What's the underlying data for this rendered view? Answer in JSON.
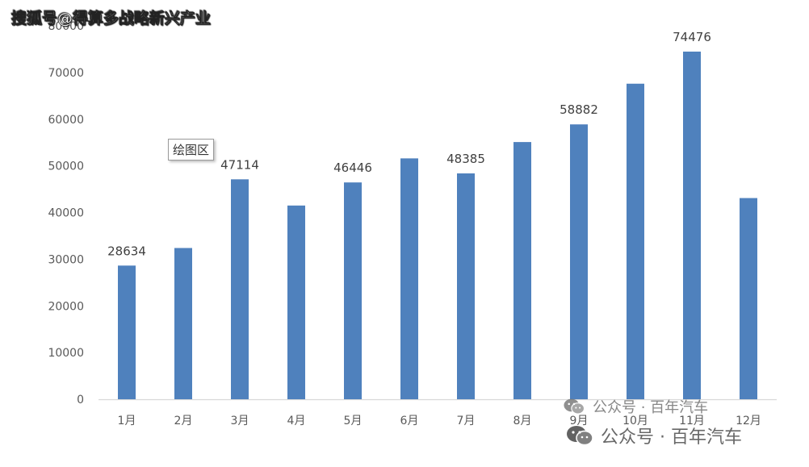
{
  "watermark_top": "搜狐号@得算多战略新兴产业",
  "tooltip": "绘图区",
  "watermark_bottom": {
    "line1": "公众号 · 百年汽车",
    "line2": "公众号 · 百年汽车",
    "icon": "wechat-icon"
  },
  "colors": {
    "bar": "#4F81BD",
    "axis": "#D9D9D9",
    "text": "#595959"
  },
  "chart_data": {
    "type": "bar",
    "categories": [
      "1月",
      "2月",
      "3月",
      "4月",
      "5月",
      "6月",
      "7月",
      "8月",
      "9月",
      "10月",
      "11月",
      "12月"
    ],
    "values": [
      28634,
      32400,
      47114,
      41500,
      46446,
      51600,
      48385,
      55100,
      58882,
      67600,
      74476,
      43100
    ],
    "data_labels": [
      "28634",
      null,
      "47114",
      null,
      "46446",
      null,
      "48385",
      null,
      "58882",
      null,
      "74476",
      null
    ],
    "y_ticks": [
      "0",
      "10000",
      "20000",
      "30000",
      "40000",
      "50000",
      "60000",
      "70000",
      "80000"
    ],
    "ylim": [
      0,
      80000
    ],
    "grid": false,
    "legend": "none",
    "title": "",
    "xlabel": "",
    "ylabel": ""
  }
}
